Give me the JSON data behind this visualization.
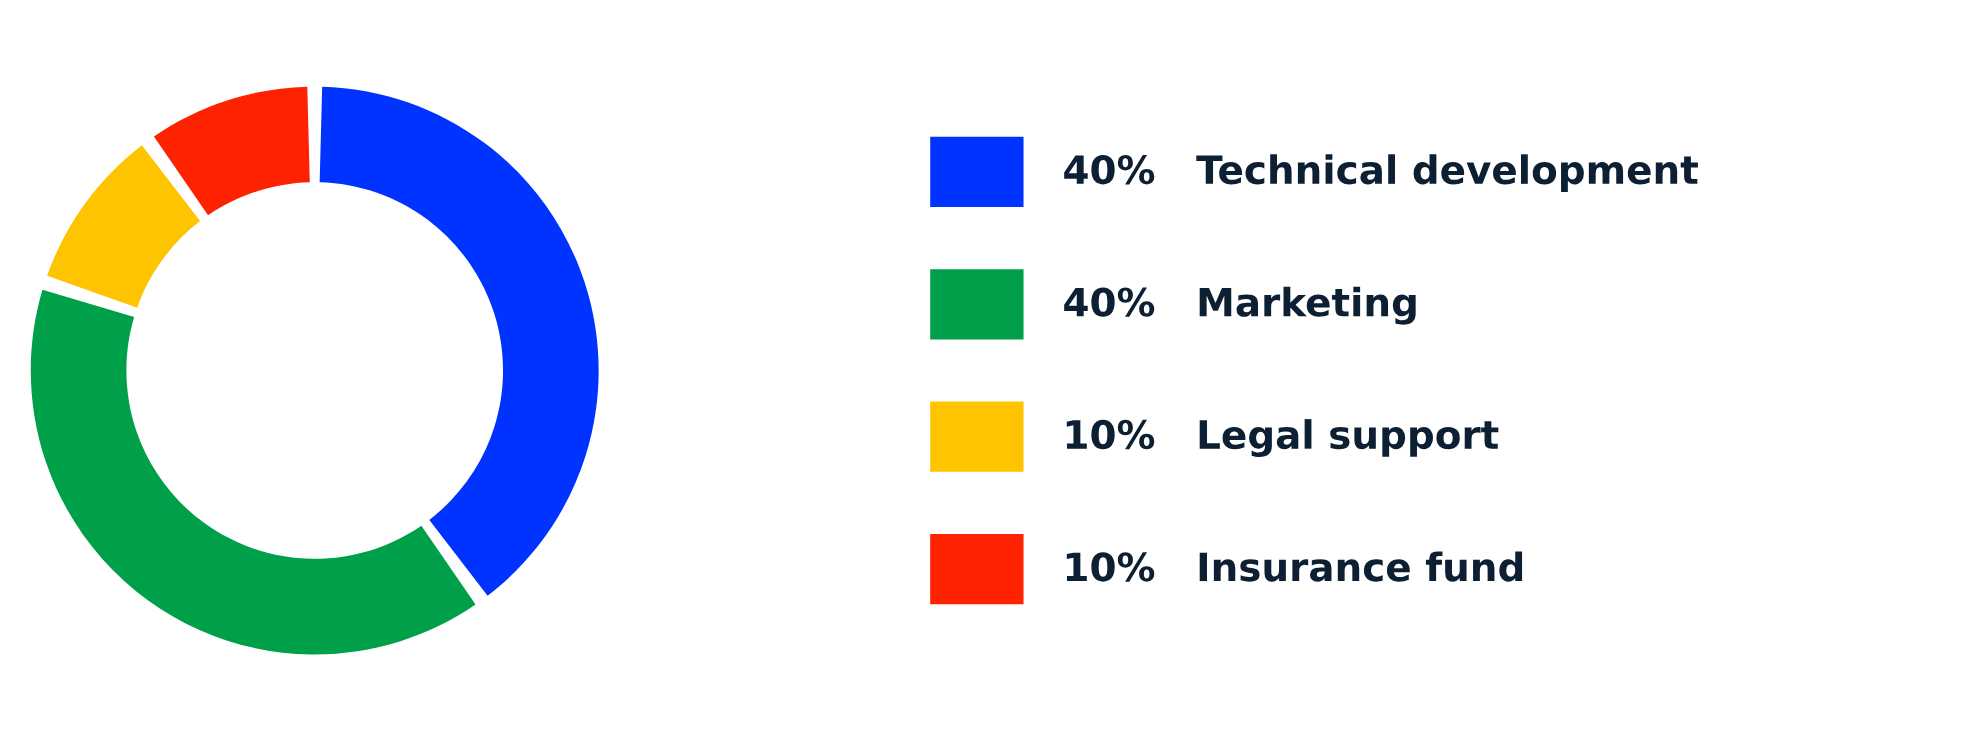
{
  "chart_data": {
    "type": "donut",
    "categories": [
      "Technical development",
      "Marketing",
      "Legal support",
      "Insurance fund"
    ],
    "values": [
      40,
      40,
      10,
      10
    ],
    "value_labels": [
      "40%",
      "40%",
      "10%",
      "10%"
    ],
    "colors": [
      "#0033ff",
      "#00a04a",
      "#ffc400",
      "#ff2200"
    ],
    "legend": "right"
  }
}
